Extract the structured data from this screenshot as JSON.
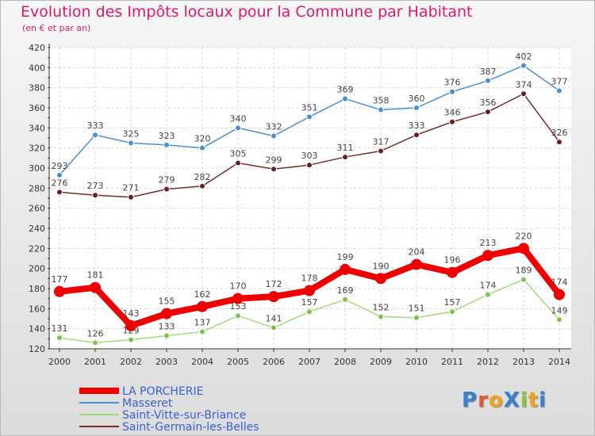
{
  "header": {
    "title": "Evolution des Impôts locaux pour la Commune par Habitant",
    "subtitle": "(en € et par an)"
  },
  "logo": {
    "text": "ProXiti",
    "letters": [
      "P",
      "r",
      "o",
      "X",
      "i",
      "t",
      "i"
    ],
    "colors": [
      "#3a7fd0",
      "#e85a2a",
      "#f2a21c",
      "#3a7fd0",
      "#8cc63f",
      "#f2a21c",
      "#3a7fd0"
    ]
  },
  "chart_data": {
    "type": "line",
    "title": "Evolution des Impôts locaux pour la Commune par Habitant",
    "subtitle": "(en € et par an)",
    "xlabel": "",
    "ylabel": "",
    "x": [
      "2000",
      "2001",
      "2002",
      "2003",
      "2004",
      "2005",
      "2006",
      "2007",
      "2008",
      "2009",
      "2010",
      "2011",
      "2012",
      "2013",
      "2014"
    ],
    "ylim": [
      120,
      420
    ],
    "yticks": [
      120,
      140,
      160,
      180,
      200,
      220,
      240,
      260,
      280,
      300,
      320,
      340,
      360,
      380,
      400,
      420
    ],
    "grid": true,
    "legend_position": "bottom-left",
    "series": [
      {
        "name": "Masseret",
        "color": "#4a8fd4",
        "marker_color": "#4a8fd4",
        "values": [
          293,
          333,
          325,
          323,
          320,
          340,
          332,
          351,
          369,
          358,
          360,
          376,
          387,
          402,
          377
        ],
        "labels": [
          "293",
          "333",
          "325",
          "323",
          "320",
          "340",
          "332",
          "351",
          "369",
          "358",
          "360",
          "376",
          "387",
          "402",
          "377"
        ]
      },
      {
        "name": "Saint-Germain-les-Belles",
        "color": "#7a2a2a",
        "marker_color": "#6a1e1e",
        "values": [
          276,
          273,
          271,
          279,
          282,
          305,
          299,
          303,
          311,
          317,
          333,
          346,
          356,
          374,
          326
        ],
        "labels": [
          "276",
          "273",
          "271",
          "279",
          "282",
          "305",
          "299",
          "303",
          "311",
          "317",
          "333",
          "346",
          "356",
          "374",
          "326"
        ]
      },
      {
        "name": "Saint-Vitte-sur-Briance",
        "color": "#9edb7a",
        "marker_color": "#7cc24e",
        "values": [
          131,
          126,
          129,
          133,
          137,
          153,
          141,
          157,
          169,
          152,
          151,
          157,
          174,
          189,
          149
        ],
        "labels": [
          "131",
          "126",
          "129",
          "133",
          "137",
          "153",
          "141",
          "157",
          "169",
          "152",
          "151",
          "157",
          "174",
          "189",
          "149"
        ]
      },
      {
        "name": "LA PORCHERIE",
        "color": "#ee0000",
        "marker_color": "#ee0000",
        "values": [
          177,
          181,
          143,
          155,
          162,
          170,
          172,
          178,
          199,
          190,
          204,
          196,
          213,
          220,
          174
        ],
        "labels": [
          "177",
          "181",
          "143",
          "155",
          "162",
          "170",
          "172",
          "178",
          "199",
          "190",
          "204",
          "196",
          "213",
          "220",
          "174"
        ]
      }
    ],
    "legend": [
      {
        "name": "LA PORCHERIE",
        "color": "#ee0000",
        "text_color": "#3a5fd0"
      },
      {
        "name": "Masseret",
        "color": "#4a8fd4",
        "text_color": "#3a5fd0"
      },
      {
        "name": "Saint-Vitte-sur-Briance",
        "color": "#9edb7a",
        "text_color": "#3a5fd0"
      },
      {
        "name": "Saint-Germain-les-Belles",
        "color": "#7a2a2a",
        "text_color": "#3a5fd0"
      }
    ]
  }
}
